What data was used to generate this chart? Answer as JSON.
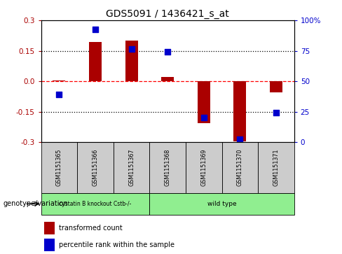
{
  "title": "GDS5091 / 1436421_s_at",
  "samples": [
    "GSM1151365",
    "GSM1151366",
    "GSM1151367",
    "GSM1151368",
    "GSM1151369",
    "GSM1151370",
    "GSM1151371"
  ],
  "red_values": [
    0.005,
    0.195,
    0.2,
    0.02,
    -0.205,
    -0.295,
    -0.055
  ],
  "blue_values": [
    -0.065,
    0.255,
    0.16,
    0.145,
    -0.18,
    -0.285,
    -0.155
  ],
  "ylim": [
    -0.3,
    0.3
  ],
  "yticks_left": [
    -0.3,
    -0.15,
    0.0,
    0.15,
    0.3
  ],
  "yticks_right_pos": [
    -0.3,
    -0.15,
    0.0,
    0.15,
    0.3
  ],
  "yticks_right_labels": [
    "0",
    "25",
    "50",
    "75",
    "100%"
  ],
  "red_color": "#AA0000",
  "blue_color": "#0000CC",
  "sample_bg_color": "#cccccc",
  "group1_label": "cystatin B knockout Cstb-/-",
  "group1_indices": [
    0,
    1,
    2
  ],
  "group2_label": "wild type",
  "group2_indices": [
    3,
    4,
    5,
    6
  ],
  "group_color": "#90EE90",
  "legend_red_label": "transformed count",
  "legend_blue_label": "percentile rank within the sample",
  "genotype_label": "genotype/variation",
  "bar_width": 0.35
}
